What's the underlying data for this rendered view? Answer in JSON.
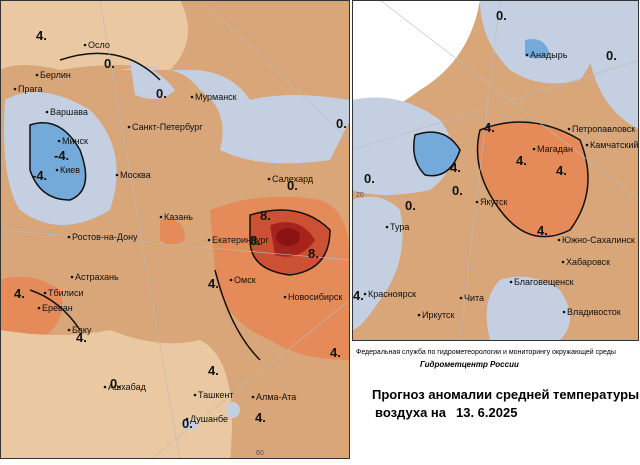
{
  "left_map": {
    "cities": [
      "Осло",
      "Берлин",
      "Прага",
      "Варшава",
      "Минск",
      "Киев",
      "Санкт-Петербург",
      "Мурманск",
      "Москва",
      "Салехард",
      "Казань",
      "Ростов-на-Дону",
      "Екатеринбург",
      "Астрахань",
      "Тбилиси",
      "Ереван",
      "Омск",
      "Новосибирск",
      "Баку",
      "Ашхабад",
      "Ташкент",
      "Алма-Ата",
      "Душанбе"
    ],
    "contour_labels": [
      "4.",
      "0.",
      "0.",
      "-4.",
      "-4.",
      "0.",
      "0.",
      "8.",
      "8.",
      "8.",
      "4.",
      "4.",
      "4.",
      "4.",
      "0.",
      "4.",
      "4.",
      "0."
    ],
    "grid_labels": [
      "60"
    ]
  },
  "right_map": {
    "cities": [
      "Анадырь",
      "Петропавловск",
      "Камчатский",
      "Магадан",
      "Якутск",
      "Тура",
      "Южно-Сахалинск",
      "Хабаровск",
      "Благовещенск",
      "Красноярск",
      "Чита",
      "Иркутск",
      "Владивосток"
    ],
    "contour_labels": [
      "0.",
      "0.",
      "4.",
      "4.",
      "0.",
      "4.",
      "0.",
      "4.",
      "4.",
      "0.",
      "4."
    ],
    "grid_labels": [
      "20"
    ]
  },
  "footer": {
    "agency": "Федеральная служба по гидрометеорологии и мониторингу окружающей среды",
    "center": "Гидрометцентр России",
    "title_line1": "Прогноз аномалии средней температуры",
    "title_line2": "воздуха на",
    "date": "13. 6.2025"
  }
}
